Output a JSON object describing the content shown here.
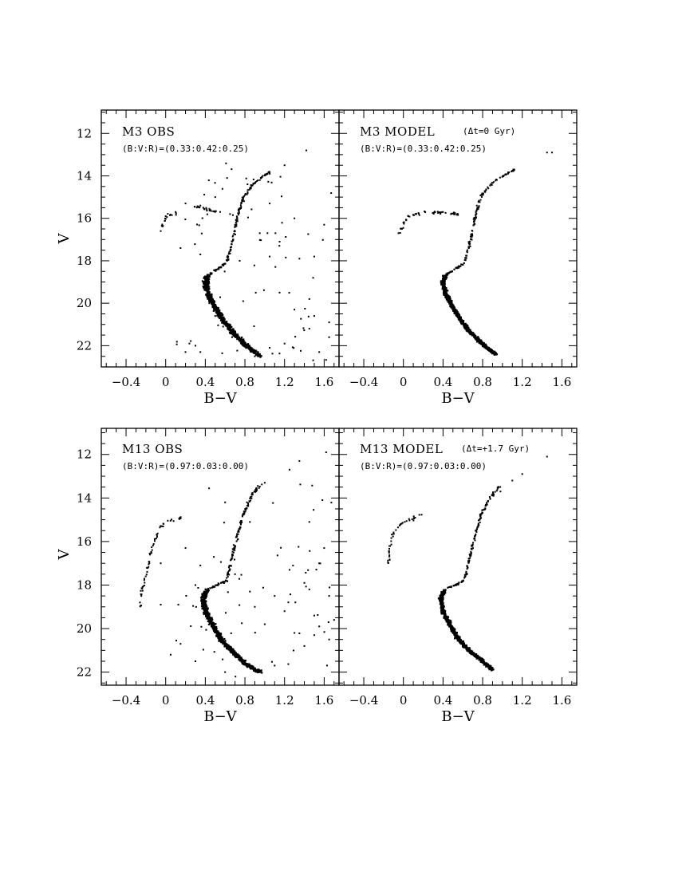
{
  "figure": {
    "xlabel": "B−V",
    "ylabel": "V"
  },
  "chart_data": [
    {
      "id": "m3-obs",
      "type": "scatter",
      "title": "M3 OBS",
      "subtitle": "(B:V:R)=(0.33:0.42:0.25)",
      "xlabel": "B−V",
      "ylabel": "V",
      "xlim": [
        -0.65,
        1.75
      ],
      "ylim": [
        23.0,
        10.9
      ],
      "xticks": [
        "−0.4",
        "0",
        "0.4",
        "0.8",
        "1.2",
        "1.6"
      ],
      "yticks": [
        "12",
        "14",
        "16",
        "18",
        "20",
        "22"
      ],
      "points": [
        [
          1.42,
          12.8
        ],
        [
          1.2,
          13.5
        ],
        [
          1.05,
          13.9
        ],
        [
          0.95,
          14.2
        ],
        [
          0.85,
          14.6
        ],
        [
          0.78,
          15.1
        ],
        [
          0.74,
          15.7
        ],
        [
          0.7,
          16.4
        ],
        [
          0.67,
          17.1
        ],
        [
          0.64,
          17.6
        ],
        [
          0.62,
          18.0
        ],
        [
          0.55,
          18.3
        ],
        [
          0.46,
          18.6
        ],
        [
          0.42,
          19.3
        ],
        [
          0.44,
          20.0
        ],
        [
          0.5,
          20.6
        ],
        [
          0.58,
          21.1
        ],
        [
          0.67,
          21.6
        ],
        [
          0.78,
          22.0
        ],
        [
          0.9,
          22.5
        ],
        [
          -0.05,
          16.6
        ],
        [
          0.0,
          15.9
        ],
        [
          0.1,
          15.7
        ],
        [
          0.2,
          15.3
        ],
        [
          0.35,
          15.4
        ],
        [
          0.45,
          15.6
        ],
        [
          0.55,
          15.7
        ],
        [
          0.65,
          15.8
        ],
        [
          1.05,
          15.3
        ],
        [
          1.3,
          16.0
        ],
        [
          1.6,
          16.3
        ],
        [
          0.95,
          16.7
        ],
        [
          1.15,
          17.1
        ],
        [
          0.15,
          17.4
        ],
        [
          0.35,
          17.7
        ],
        [
          1.05,
          17.8
        ],
        [
          1.35,
          17.9
        ],
        [
          1.5,
          17.8
        ],
        [
          1.75,
          19.0
        ],
        [
          1.15,
          19.5
        ],
        [
          1.45,
          19.8
        ],
        [
          1.3,
          20.3
        ],
        [
          1.5,
          20.6
        ],
        [
          1.65,
          20.9
        ],
        [
          1.45,
          21.2
        ],
        [
          1.65,
          21.6
        ],
        [
          1.2,
          21.9
        ],
        [
          1.05,
          22.1
        ],
        [
          0.2,
          22.3
        ],
        [
          0.3,
          22.0
        ],
        [
          0.35,
          22.3
        ],
        [
          1.55,
          22.3
        ],
        [
          0.62,
          14.1
        ],
        [
          0.5,
          15.0
        ]
      ],
      "sequences": {
        "main": [
          [
            0.62,
            18.1
          ],
          [
            0.42,
            18.7
          ],
          [
            0.4,
            19.0
          ],
          [
            0.43,
            19.6
          ],
          [
            0.5,
            20.2
          ],
          [
            0.58,
            20.8
          ],
          [
            0.68,
            21.4
          ],
          [
            0.82,
            22.0
          ],
          [
            0.95,
            22.5
          ]
        ],
        "giant": [
          [
            0.62,
            18.0
          ],
          [
            0.68,
            17.0
          ],
          [
            0.72,
            16.0
          ],
          [
            0.78,
            15.0
          ],
          [
            0.9,
            14.3
          ],
          [
            1.05,
            13.8
          ]
        ],
        "hb": [
          [
            -0.05,
            16.5
          ],
          [
            0.0,
            15.9
          ],
          [
            0.12,
            15.75
          ]
        ],
        "hb_red": [
          [
            0.28,
            15.4
          ],
          [
            0.42,
            15.6
          ],
          [
            0.52,
            15.7
          ]
        ]
      },
      "main_spread": 0.09,
      "field_stars": 70
    },
    {
      "id": "m3-model",
      "type": "scatter",
      "title": "M3 MODEL",
      "title_note": "(Δt=0 Gyr)",
      "subtitle": "(B:V:R)=(0.33:0.42:0.25)",
      "xlabel": "B−V",
      "ylabel": "V",
      "xlim": [
        -0.65,
        1.75
      ],
      "ylim": [
        23.0,
        10.9
      ],
      "xticks": [
        "−0.4",
        "0",
        "0.4",
        "0.8",
        "1.2",
        "1.6"
      ],
      "yticks": [
        "12",
        "14",
        "16",
        "18",
        "20",
        "22"
      ],
      "points": [
        [
          1.45,
          12.9
        ],
        [
          1.5,
          12.9
        ],
        [
          -0.05,
          16.7
        ],
        [
          0.0,
          16.2
        ],
        [
          0.05,
          15.9
        ],
        [
          0.12,
          15.8
        ],
        [
          0.22,
          15.7
        ],
        [
          0.3,
          15.75
        ],
        [
          0.4,
          15.7
        ],
        [
          0.48,
          15.8
        ],
        [
          0.55,
          15.8
        ]
      ],
      "sequences": {
        "main": [
          [
            0.62,
            18.1
          ],
          [
            0.42,
            18.7
          ],
          [
            0.4,
            19.0
          ],
          [
            0.43,
            19.6
          ],
          [
            0.5,
            20.2
          ],
          [
            0.58,
            20.8
          ],
          [
            0.68,
            21.4
          ],
          [
            0.82,
            22.0
          ],
          [
            0.93,
            22.4
          ]
        ],
        "giant": [
          [
            0.62,
            18.0
          ],
          [
            0.68,
            17.0
          ],
          [
            0.72,
            16.0
          ],
          [
            0.78,
            15.0
          ],
          [
            0.9,
            14.3
          ],
          [
            1.12,
            13.7
          ]
        ],
        "hb": [
          [
            -0.05,
            16.7
          ],
          [
            0.05,
            15.9
          ],
          [
            0.22,
            15.7
          ]
        ],
        "hb_red": [
          [
            0.28,
            15.7
          ],
          [
            0.42,
            15.75
          ],
          [
            0.55,
            15.8
          ]
        ]
      },
      "main_spread": 0.07,
      "field_stars": 0
    },
    {
      "id": "m13-obs",
      "type": "scatter",
      "title": "M13 OBS",
      "subtitle": "(B:V:R)=(0.97:0.03:0.00)",
      "xlabel": "B−V",
      "ylabel": "V",
      "xlim": [
        -0.65,
        1.75
      ],
      "ylim": [
        22.6,
        10.8
      ],
      "xticks": [
        "−0.4",
        "0",
        "0.4",
        "0.8",
        "1.2",
        "1.6"
      ],
      "yticks": [
        "12",
        "14",
        "16",
        "18",
        "20",
        "22"
      ],
      "points": [
        [
          1.62,
          11.9
        ],
        [
          1.35,
          12.3
        ],
        [
          1.25,
          12.7
        ],
        [
          1.0,
          13.3
        ],
        [
          0.9,
          13.7
        ],
        [
          0.82,
          14.2
        ],
        [
          0.6,
          14.2
        ],
        [
          1.45,
          15.1
        ],
        [
          1.6,
          16.3
        ],
        [
          0.2,
          16.3
        ],
        [
          -0.05,
          17.0
        ],
        [
          0.35,
          17.1
        ],
        [
          1.25,
          17.3
        ],
        [
          1.55,
          17.0
        ],
        [
          0.3,
          18.0
        ],
        [
          0.85,
          18.3
        ],
        [
          1.1,
          18.5
        ],
        [
          1.45,
          18.2
        ],
        [
          1.65,
          18.5
        ],
        [
          -0.05,
          18.9
        ],
        [
          0.9,
          19.0
        ],
        [
          1.2,
          19.2
        ],
        [
          1.5,
          19.4
        ],
        [
          1.7,
          19.6
        ],
        [
          1.0,
          19.8
        ],
        [
          1.3,
          20.2
        ],
        [
          1.5,
          20.3
        ],
        [
          1.65,
          20.5
        ],
        [
          1.4,
          20.8
        ],
        [
          0.15,
          20.7
        ],
        [
          0.05,
          21.2
        ],
        [
          0.3,
          21.5
        ],
        [
          1.1,
          21.7
        ],
        [
          0.6,
          22.0
        ],
        [
          1.55,
          19.9
        ],
        [
          1.4,
          17.9
        ],
        [
          0.7,
          17.5
        ]
      ],
      "sequences": {
        "main": [
          [
            0.62,
            17.8
          ],
          [
            0.42,
            18.2
          ],
          [
            0.38,
            18.6
          ],
          [
            0.4,
            19.2
          ],
          [
            0.48,
            19.9
          ],
          [
            0.56,
            20.5
          ],
          [
            0.66,
            21.0
          ],
          [
            0.8,
            21.6
          ],
          [
            0.95,
            22.0
          ]
        ],
        "giant": [
          [
            0.62,
            17.7
          ],
          [
            0.67,
            16.7
          ],
          [
            0.72,
            15.8
          ],
          [
            0.78,
            14.8
          ],
          [
            0.88,
            13.8
          ],
          [
            0.98,
            13.3
          ]
        ],
        "hb": [
          [
            -0.25,
            19.0
          ],
          [
            -0.25,
            18.4
          ],
          [
            -0.2,
            17.5
          ],
          [
            -0.15,
            16.5
          ],
          [
            -0.1,
            15.8
          ],
          [
            -0.05,
            15.3
          ],
          [
            0.05,
            15.0
          ],
          [
            0.15,
            14.9
          ]
        ]
      },
      "main_spread": 0.09,
      "field_stars": 60
    },
    {
      "id": "m13-model",
      "type": "scatter",
      "title": "M13 MODEL",
      "title_note": "(Δt=+1.7 Gyr)",
      "subtitle": "(B:V:R)=(0.97:0.03:0.00)",
      "xlabel": "B−V",
      "ylabel": "V",
      "xlim": [
        -0.65,
        1.75
      ],
      "ylim": [
        22.6,
        10.8
      ],
      "xticks": [
        "−0.4",
        "0",
        "0.4",
        "0.8",
        "1.2",
        "1.6"
      ],
      "yticks": [
        "12",
        "14",
        "16",
        "18",
        "20",
        "22"
      ],
      "points": [
        [
          1.45,
          12.1
        ],
        [
          1.2,
          12.9
        ],
        [
          1.1,
          13.2
        ],
        [
          0.98,
          13.7
        ]
      ],
      "sequences": {
        "main": [
          [
            0.62,
            17.8
          ],
          [
            0.42,
            18.2
          ],
          [
            0.38,
            18.6
          ],
          [
            0.4,
            19.2
          ],
          [
            0.48,
            19.9
          ],
          [
            0.56,
            20.5
          ],
          [
            0.66,
            21.0
          ],
          [
            0.8,
            21.5
          ],
          [
            0.9,
            21.9
          ]
        ],
        "giant": [
          [
            0.62,
            17.7
          ],
          [
            0.67,
            16.7
          ],
          [
            0.72,
            15.8
          ],
          [
            0.78,
            14.8
          ],
          [
            0.88,
            14.0
          ],
          [
            0.98,
            13.4
          ]
        ],
        "hb": [
          [
            -0.15,
            17.2
          ],
          [
            -0.15,
            16.6
          ],
          [
            -0.12,
            15.9
          ],
          [
            -0.08,
            15.4
          ],
          [
            0.0,
            15.1
          ],
          [
            0.1,
            14.95
          ],
          [
            0.2,
            14.8
          ]
        ]
      },
      "main_spread": 0.07,
      "field_stars": 0
    }
  ]
}
